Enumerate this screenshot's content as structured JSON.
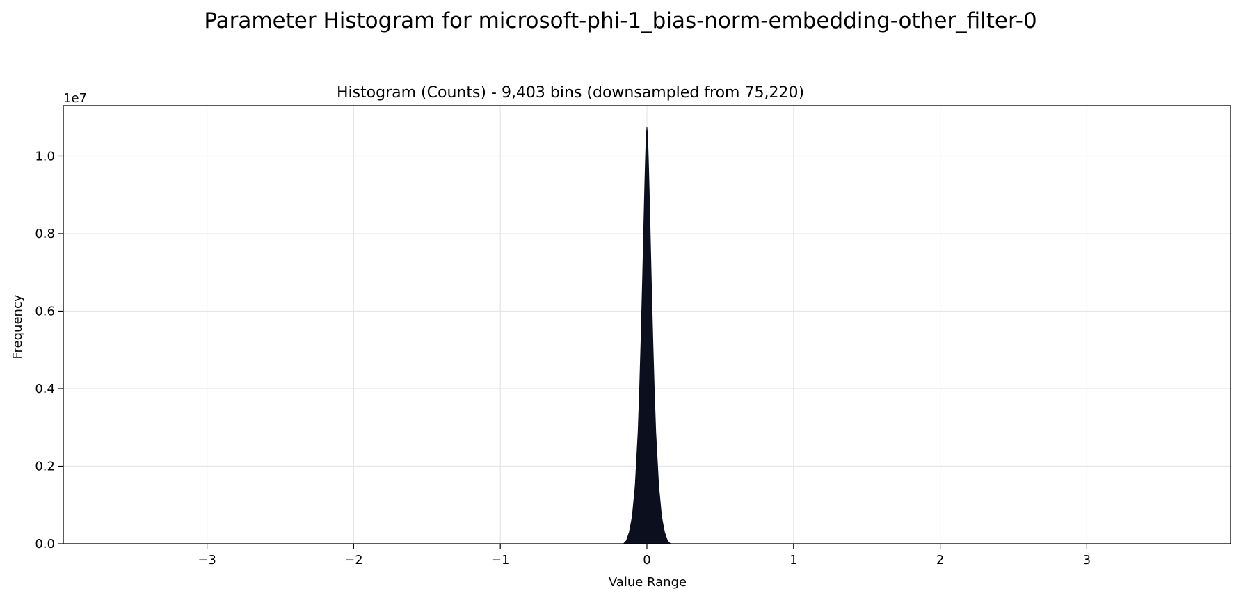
{
  "figure": {
    "suptitle": "Parameter Histogram for microsoft-phi-1_bias-norm-embedding-other_filter-0"
  },
  "chart_data": {
    "type": "area",
    "title": "Histogram (Counts) - 9,403 bins (downsampled from 75,220)",
    "xlabel": "Value Range",
    "ylabel": "Frequency",
    "y_offset_label": "1e7",
    "xlim": [
      -3.98,
      3.98
    ],
    "ylim": [
      0,
      11300000
    ],
    "x_ticks": [
      -3,
      -2,
      -1,
      0,
      1,
      2,
      3
    ],
    "x_tick_labels": [
      "−3",
      "−2",
      "−1",
      "0",
      "1",
      "2",
      "3"
    ],
    "y_ticks": [
      0,
      2000000,
      4000000,
      6000000,
      8000000,
      10000000
    ],
    "y_tick_labels": [
      "0.0",
      "0.2",
      "0.4",
      "0.6",
      "0.8",
      "1.0"
    ],
    "grid": true,
    "fill_color": "#0b0f1e",
    "grid_color": "#e6e6e6",
    "x": [
      -0.16,
      -0.14,
      -0.12,
      -0.1,
      -0.08,
      -0.06,
      -0.05,
      -0.04,
      -0.03,
      -0.02,
      -0.015,
      -0.01,
      -0.005,
      0.0,
      0.005,
      0.01,
      0.015,
      0.02,
      0.03,
      0.04,
      0.05,
      0.06,
      0.08,
      0.1,
      0.12,
      0.14,
      0.16
    ],
    "values": [
      0,
      80000,
      300000,
      700000,
      1500000,
      2900000,
      4000000,
      5300000,
      6800000,
      8400000,
      9200000,
      9900000,
      10500000,
      10750000,
      10500000,
      9900000,
      9200000,
      8400000,
      6800000,
      5300000,
      4000000,
      2900000,
      1500000,
      700000,
      300000,
      80000,
      0
    ]
  }
}
